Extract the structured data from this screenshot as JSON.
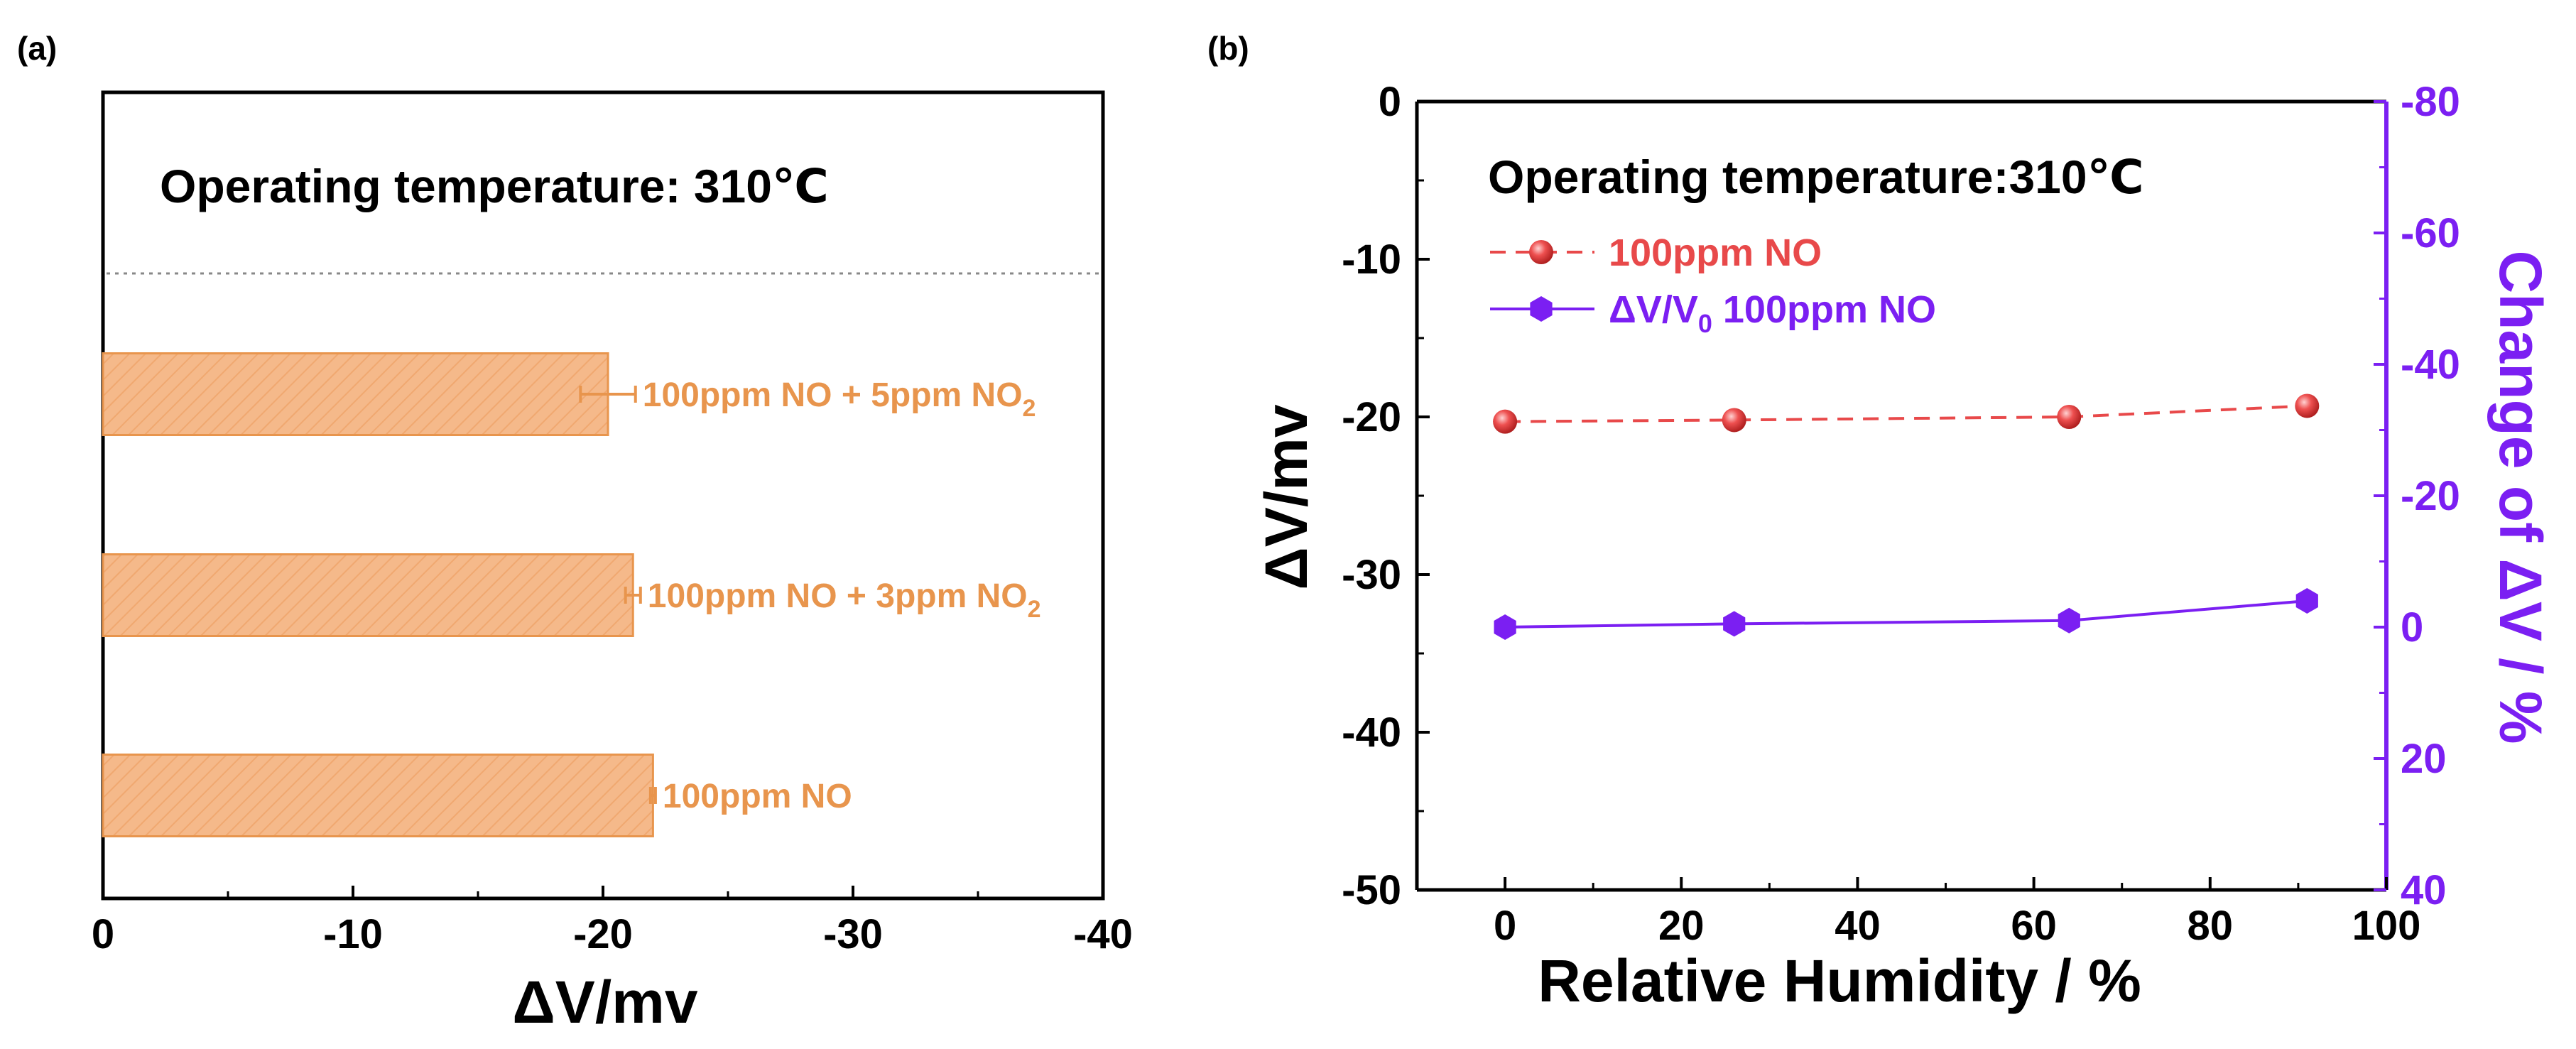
{
  "chart_data": [
    {
      "panel": "(a)",
      "type": "bar",
      "orientation": "horizontal",
      "annotation": "Operating temperature: 310℃",
      "categories": [
        "100ppm NO + 5ppm NO",
        "100ppm NO + 3ppm NO",
        "100ppm NO"
      ],
      "category_subscripts": [
        "2",
        "2",
        ""
      ],
      "values": [
        -20.2,
        -21.2,
        -22.0
      ],
      "errors": [
        1.1,
        0.3,
        0.1
      ],
      "bar_color": "#f5b98a",
      "bar_edge_color": "#e8954d",
      "label_color": "#e8954d",
      "xlabel": "ΔV/mv",
      "xlim": [
        0,
        -40
      ],
      "xticks": [
        0,
        -10,
        -20,
        -30,
        -40
      ],
      "xtick_labels": [
        "0",
        "-10",
        "-20",
        "-30",
        "-40"
      ]
    },
    {
      "panel": "(b)",
      "type": "line",
      "annotation": "Operating temperature:310℃",
      "xlabel": "Relative Humidity / %",
      "xlim": [
        -10,
        100
      ],
      "xticks": [
        0,
        20,
        40,
        60,
        80,
        100
      ],
      "xtick_labels": [
        "0",
        "20",
        "40",
        "60",
        "80",
        "100"
      ],
      "ylabel": "ΔV/mv",
      "ylim": [
        0,
        -50
      ],
      "yticks": [
        0,
        -10,
        -20,
        -30,
        -40,
        -50
      ],
      "ytick_labels": [
        "0",
        "-10",
        "-20",
        "-30",
        "-40",
        "-50"
      ],
      "y2label": "Change of ΔV / %",
      "y2lim": [
        -80,
        40
      ],
      "y2ticks": [
        -80,
        -60,
        -40,
        -20,
        0,
        20,
        40
      ],
      "y2tick_labels": [
        "-80",
        "-60",
        "-40",
        "-20",
        "0",
        "20",
        "40"
      ],
      "series": [
        {
          "name": "100ppm  NO",
          "axis": "left",
          "marker": "sphere",
          "line": "dashed",
          "color": "#e8494a",
          "x": [
            0,
            26,
            64,
            91
          ],
          "values": [
            -20.3,
            -20.2,
            -20.0,
            -19.3
          ]
        },
        {
          "name": "ΔV/V",
          "name_subscript": "0",
          "name_suffix": " 100ppm  NO",
          "axis": "right",
          "marker": "hexagon",
          "line": "solid",
          "color": "#7b1ff2",
          "x": [
            0,
            26,
            64,
            91
          ],
          "values": [
            0.0,
            -0.5,
            -1.0,
            -4.0
          ]
        }
      ]
    }
  ]
}
